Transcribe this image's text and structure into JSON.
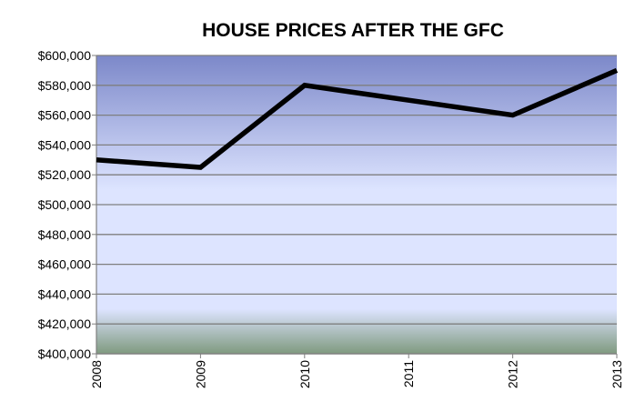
{
  "chart_data": {
    "type": "line",
    "title": "HOUSE PRICES AFTER THE GFC",
    "xlabel": "",
    "ylabel": "",
    "categories": [
      "2008",
      "2009",
      "2010",
      "2011",
      "2012",
      "2013"
    ],
    "series": [
      {
        "values": [
          530000,
          525000,
          580000,
          570000,
          560000,
          590000
        ]
      }
    ],
    "ylim": [
      400000,
      600000
    ],
    "yticks": [
      400000,
      420000,
      440000,
      460000,
      480000,
      500000,
      520000,
      540000,
      560000,
      580000,
      600000
    ],
    "ytick_labels": [
      "$400,000",
      "$420,000",
      "$440,000",
      "$460,000",
      "$480,000",
      "$500,000",
      "$520,000",
      "$540,000",
      "$560,000",
      "$580,000",
      "$600,000"
    ],
    "grid": true,
    "legend": "none"
  },
  "colors": {
    "line": "#000000",
    "grid": "#7f7f7f",
    "plot_top": "#7c88c9",
    "plot_mid": "#dde4ff",
    "plot_bottom": "#7f9a7f"
  }
}
